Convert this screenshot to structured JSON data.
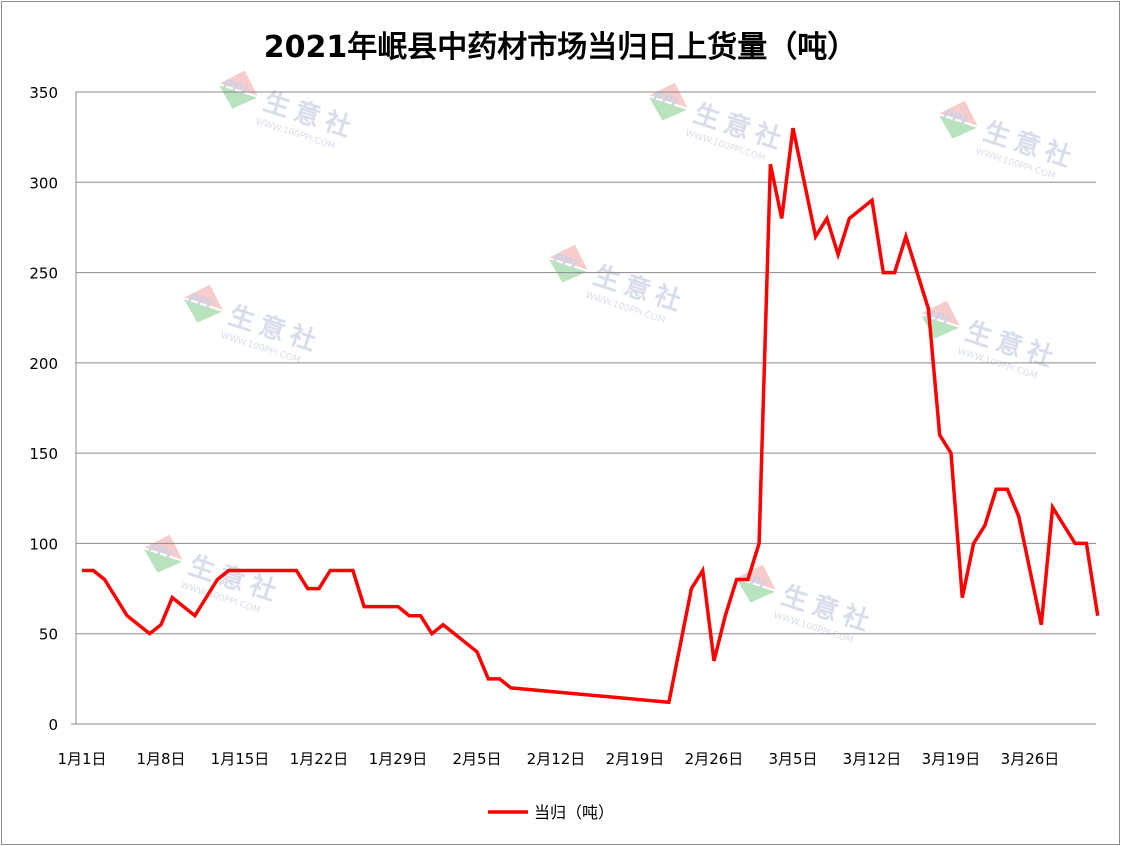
{
  "chart_data": {
    "type": "line",
    "title": "2021年岷县中药材市场当归日上货量（吨）",
    "ylim": [
      0,
      350
    ],
    "y_ticks": [
      0,
      50,
      100,
      150,
      200,
      250,
      300,
      350
    ],
    "x_tick_labels": [
      "1月1日",
      "1月8日",
      "1月15日",
      "1月22日",
      "1月29日",
      "2月5日",
      "2月12日",
      "2月19日",
      "2月26日",
      "3月5日",
      "3月12日",
      "3月19日",
      "3月26日"
    ],
    "grid": true,
    "legend_position": "bottom",
    "series": [
      {
        "name": "当归（吨）",
        "color": "#ff0000",
        "points": [
          [
            "1月1日",
            85
          ],
          [
            "1月2日",
            85
          ],
          [
            "1月3日",
            80
          ],
          [
            "1月5日",
            60
          ],
          [
            "1月7日",
            50
          ],
          [
            "1月8日",
            55
          ],
          [
            "1月9日",
            70
          ],
          [
            "1月11日",
            60
          ],
          [
            "1月13日",
            80
          ],
          [
            "1月14日",
            85
          ],
          [
            "1月20日",
            85
          ],
          [
            "1月21日",
            75
          ],
          [
            "1月22日",
            75
          ],
          [
            "1月23日",
            85
          ],
          [
            "1月25日",
            85
          ],
          [
            "1月26日",
            65
          ],
          [
            "1月29日",
            65
          ],
          [
            "1月30日",
            60
          ],
          [
            "1月31日",
            60
          ],
          [
            "2月1日",
            50
          ],
          [
            "2月2日",
            55
          ],
          [
            "2月5日",
            40
          ],
          [
            "2月6日",
            25
          ],
          [
            "2月7日",
            25
          ],
          [
            "2月8日",
            20
          ],
          [
            "2月22日",
            12
          ],
          [
            "2月24日",
            75
          ],
          [
            "2月25日",
            85
          ],
          [
            "2月26日",
            35
          ],
          [
            "2月27日",
            60
          ],
          [
            "2月28日",
            80
          ],
          [
            "3月1日",
            80
          ],
          [
            "3月2日",
            100
          ],
          [
            "3月3日",
            310
          ],
          [
            "3月4日",
            280
          ],
          [
            "3月5日",
            330
          ],
          [
            "3月7日",
            270
          ],
          [
            "3月8日",
            280
          ],
          [
            "3月9日",
            260
          ],
          [
            "3月10日",
            280
          ],
          [
            "3月12日",
            290
          ],
          [
            "3月13日",
            250
          ],
          [
            "3月14日",
            250
          ],
          [
            "3月15日",
            270
          ],
          [
            "3月17日",
            230
          ],
          [
            "3月18日",
            160
          ],
          [
            "3月19日",
            150
          ],
          [
            "3月20日",
            70
          ],
          [
            "3月21日",
            100
          ],
          [
            "3月22日",
            110
          ],
          [
            "3月23日",
            130
          ],
          [
            "3月24日",
            130
          ],
          [
            "3月25日",
            115
          ],
          [
            "3月27日",
            55
          ],
          [
            "3月28日",
            120
          ],
          [
            "3月30日",
            100
          ],
          [
            "3月31日",
            100
          ],
          [
            "4月1日",
            60
          ]
        ]
      }
    ]
  },
  "watermark": {
    "logo_text": "PPI",
    "brand": "生意社",
    "url": "WWW.100PPI.COM"
  }
}
